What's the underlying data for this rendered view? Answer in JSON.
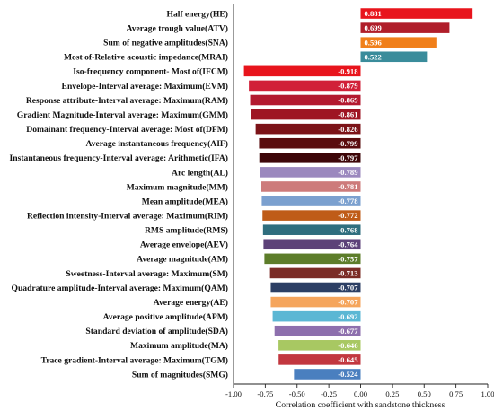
{
  "chart_data": {
    "type": "bar",
    "orientation": "horizontal",
    "xlabel": "Correlation coefficient with sandstone thickness",
    "ylabel": "",
    "xlim": [
      -1.0,
      1.0
    ],
    "xticks": [
      "-1.00",
      "-0.75",
      "-0.50",
      "-0.25",
      "0.00",
      "0.25",
      "0.50",
      "0.75",
      "1.00"
    ],
    "grid": false,
    "legend": "none",
    "categories": [
      "Half energy(HE)",
      "Average trough value(ATV)",
      "Sum of negative amplitudes(SNA)",
      "Most of-Relative acoustic impedance(MRAI)",
      "Iso-frequency component- Most of(IFCM)",
      "Envelope-Interval average: Maximum(EVM)",
      "Response attribute-Interval average: Maximum(RAM)",
      "Gradient Magnitude-Interval average: Maximum(GMM)",
      "Domainant frequency-Interval average: Most of(DFM)",
      "Average instantaneous frequency(AIF)",
      "Instantaneous frequency-Interval average: Arithmetic(IFA)",
      "Arc length(AL)",
      "Maximum magnitude(MM)",
      "Mean amplitude(MEA)",
      "Reflection intensity-Interval average: Maximum(RIM)",
      "RMS amplitude(RMS)",
      "Average envelope(AEV)",
      "Average magnitude(AM)",
      "Sweetness-Interval average: Maximum(SM)",
      "Quadrature amplitude-Interval average: Maximum(QAM)",
      "Average energy(AE)",
      "Average positive amplitude(APM)",
      "Standard deviation of amplitude(SDA)",
      "Maximum amplitude(MA)",
      "Trace gradient-Interval average: Maximum(TGM)",
      "Sum of magnitudes(SMG)"
    ],
    "values": [
      0.881,
      0.699,
      0.596,
      0.522,
      -0.918,
      -0.879,
      -0.869,
      -0.861,
      -0.826,
      -0.799,
      -0.797,
      -0.789,
      -0.781,
      -0.778,
      -0.772,
      -0.768,
      -0.764,
      -0.757,
      -0.713,
      -0.707,
      -0.707,
      -0.692,
      -0.677,
      -0.646,
      -0.645,
      -0.524
    ],
    "value_labels": [
      "0.881",
      "0.699",
      "0.596",
      "0.522",
      "-0.918",
      "-0.879",
      "-0.869",
      "-0.861",
      "-0.826",
      "-0.799",
      "-0.797",
      "-0.789",
      "-0.781",
      "-0.778",
      "-0.772",
      "-0.768",
      "-0.764",
      "-0.757",
      "-0.713",
      "-0.707",
      "-0.707",
      "-0.692",
      "-0.677",
      "-0.646",
      "-0.645",
      "-0.524"
    ],
    "colors": [
      "#e8141c",
      "#b01e2a",
      "#f07f1a",
      "#3a8c9b",
      "#e8141c",
      "#d12038",
      "#b3192f",
      "#9e1523",
      "#7c1318",
      "#5a0c0e",
      "#3d0608",
      "#9b88be",
      "#cd7b7b",
      "#7ba0cf",
      "#bf5c18",
      "#2f6e7e",
      "#5c4178",
      "#5d7d2a",
      "#7b2c26",
      "#2c3f64",
      "#f5a55c",
      "#5bb7d4",
      "#8d6fad",
      "#a8c862",
      "#c2373f",
      "#4a7fbf"
    ]
  }
}
